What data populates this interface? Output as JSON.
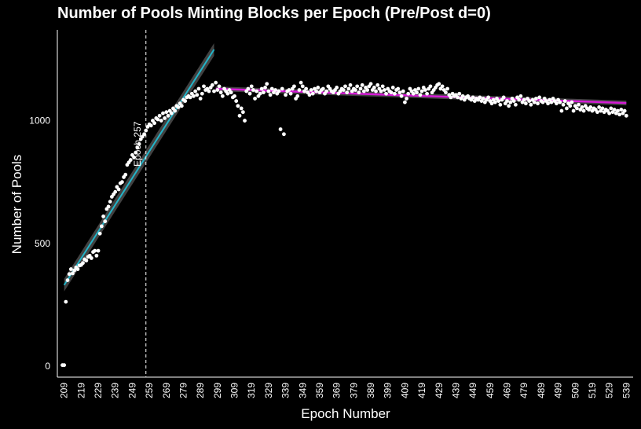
{
  "chart_data": {
    "type": "scatter",
    "title": "Number of Pools Minting Blocks per Epoch (Pre/Post d=0)",
    "xlabel": "Epoch Number",
    "ylabel": "Number of Pools",
    "xlim": [
      205,
      543
    ],
    "ylim": [
      -45,
      1370
    ],
    "x_ticks": [
      209,
      219,
      229,
      239,
      249,
      259,
      269,
      279,
      289,
      299,
      309,
      319,
      329,
      339,
      349,
      359,
      369,
      379,
      389,
      399,
      409,
      419,
      429,
      439,
      449,
      459,
      469,
      479,
      489,
      499,
      509,
      519,
      529,
      539
    ],
    "y_ticks": [
      0,
      500,
      1000
    ],
    "grid": false,
    "legend": "none",
    "colors": {
      "background": "#000000",
      "points": "#ffffff",
      "pre_fit": "#22b5c9",
      "post_fit": "#d61ad6",
      "band": "#4d4d4d",
      "vline": "#ffffff"
    },
    "reference_line": {
      "x": 257,
      "label": "Epoch 257",
      "style": "dashed"
    },
    "fit_lines": [
      {
        "segment": "pre",
        "x": [
          209,
          297
        ],
        "y": [
          330,
          1290
        ]
      },
      {
        "segment": "post",
        "x": [
          298,
          539
        ],
        "y": [
          1130,
          1072
        ]
      }
    ],
    "points": [
      [
        208,
        4
      ],
      [
        209,
        4
      ],
      [
        210,
        262
      ],
      [
        211,
        350
      ],
      [
        212,
        375
      ],
      [
        213,
        395
      ],
      [
        214,
        378
      ],
      [
        215,
        390
      ],
      [
        216,
        402
      ],
      [
        217,
        395
      ],
      [
        218,
        410
      ],
      [
        219,
        412
      ],
      [
        220,
        420
      ],
      [
        221,
        435
      ],
      [
        222,
        430
      ],
      [
        223,
        445
      ],
      [
        224,
        450
      ],
      [
        225,
        440
      ],
      [
        226,
        465
      ],
      [
        227,
        470
      ],
      [
        228,
        450
      ],
      [
        229,
        470
      ],
      [
        230,
        540
      ],
      [
        231,
        570
      ],
      [
        232,
        610
      ],
      [
        233,
        590
      ],
      [
        234,
        640
      ],
      [
        235,
        650
      ],
      [
        236,
        670
      ],
      [
        237,
        690
      ],
      [
        238,
        700
      ],
      [
        239,
        710
      ],
      [
        240,
        730
      ],
      [
        241,
        720
      ],
      [
        242,
        745
      ],
      [
        243,
        750
      ],
      [
        244,
        770
      ],
      [
        245,
        780
      ],
      [
        246,
        820
      ],
      [
        247,
        830
      ],
      [
        248,
        840
      ],
      [
        249,
        860
      ],
      [
        250,
        850
      ],
      [
        251,
        870
      ],
      [
        252,
        890
      ],
      [
        253,
        905
      ],
      [
        254,
        925
      ],
      [
        255,
        935
      ],
      [
        256,
        945
      ],
      [
        257,
        960
      ],
      [
        258,
        975
      ],
      [
        259,
        985
      ],
      [
        260,
        980
      ],
      [
        261,
        1000
      ],
      [
        262,
        990
      ],
      [
        263,
        1010
      ],
      [
        264,
        1005
      ],
      [
        265,
        1020
      ],
      [
        266,
        1000
      ],
      [
        267,
        1030
      ],
      [
        268,
        1010
      ],
      [
        269,
        1035
      ],
      [
        270,
        1020
      ],
      [
        271,
        1040
      ],
      [
        272,
        1030
      ],
      [
        273,
        1050
      ],
      [
        274,
        1040
      ],
      [
        275,
        1060
      ],
      [
        276,
        1055
      ],
      [
        277,
        1070
      ],
      [
        278,
        1060
      ],
      [
        279,
        1085
      ],
      [
        280,
        1080
      ],
      [
        281,
        1095
      ],
      [
        282,
        1100
      ],
      [
        283,
        1095
      ],
      [
        284,
        1110
      ],
      [
        285,
        1100
      ],
      [
        286,
        1120
      ],
      [
        287,
        1105
      ],
      [
        288,
        1130
      ],
      [
        289,
        1090
      ],
      [
        290,
        1110
      ],
      [
        291,
        1140
      ],
      [
        292,
        1125
      ],
      [
        293,
        1130
      ],
      [
        294,
        1120
      ],
      [
        295,
        1135
      ],
      [
        296,
        1145
      ],
      [
        297,
        1120
      ],
      [
        298,
        1155
      ],
      [
        299,
        1125
      ],
      [
        300,
        1140
      ],
      [
        301,
        1115
      ],
      [
        302,
        1100
      ],
      [
        303,
        1130
      ],
      [
        304,
        1120
      ],
      [
        305,
        1110
      ],
      [
        306,
        1125
      ],
      [
        307,
        1115
      ],
      [
        308,
        1095
      ],
      [
        309,
        1100
      ],
      [
        310,
        1080
      ],
      [
        311,
        1060
      ],
      [
        312,
        1020
      ],
      [
        313,
        1050
      ],
      [
        314,
        1035
      ],
      [
        315,
        1000
      ],
      [
        316,
        1120
      ],
      [
        317,
        1130
      ],
      [
        318,
        1110
      ],
      [
        319,
        1140
      ],
      [
        320,
        1125
      ],
      [
        321,
        1090
      ],
      [
        322,
        1120
      ],
      [
        323,
        1100
      ],
      [
        324,
        1110
      ],
      [
        325,
        1130
      ],
      [
        326,
        1115
      ],
      [
        327,
        1135
      ],
      [
        328,
        1150
      ],
      [
        329,
        1120
      ],
      [
        330,
        1105
      ],
      [
        331,
        1130
      ],
      [
        332,
        1115
      ],
      [
        333,
        1125
      ],
      [
        334,
        1110
      ],
      [
        335,
        1120
      ],
      [
        336,
        965
      ],
      [
        337,
        1130
      ],
      [
        338,
        945
      ],
      [
        339,
        1105
      ],
      [
        340,
        1120
      ],
      [
        341,
        1125
      ],
      [
        342,
        1110
      ],
      [
        343,
        1130
      ],
      [
        344,
        1140
      ],
      [
        345,
        1090
      ],
      [
        346,
        1100
      ],
      [
        347,
        1125
      ],
      [
        348,
        1155
      ],
      [
        349,
        1140
      ],
      [
        350,
        1120
      ],
      [
        351,
        1130
      ],
      [
        352,
        1115
      ],
      [
        353,
        1105
      ],
      [
        354,
        1125
      ],
      [
        355,
        1110
      ],
      [
        356,
        1130
      ],
      [
        357,
        1120
      ],
      [
        358,
        1135
      ],
      [
        359,
        1115
      ],
      [
        360,
        1125
      ],
      [
        361,
        1130
      ],
      [
        362,
        1110
      ],
      [
        363,
        1120
      ],
      [
        364,
        1140
      ],
      [
        365,
        1130
      ],
      [
        366,
        1120
      ],
      [
        367,
        1115
      ],
      [
        368,
        1125
      ],
      [
        369,
        1135
      ],
      [
        370,
        1110
      ],
      [
        371,
        1120
      ],
      [
        372,
        1130
      ],
      [
        373,
        1125
      ],
      [
        374,
        1140
      ],
      [
        375,
        1115
      ],
      [
        376,
        1130
      ],
      [
        377,
        1145
      ],
      [
        378,
        1120
      ],
      [
        379,
        1130
      ],
      [
        380,
        1125
      ],
      [
        381,
        1140
      ],
      [
        382,
        1115
      ],
      [
        383,
        1130
      ],
      [
        384,
        1145
      ],
      [
        385,
        1120
      ],
      [
        386,
        1135
      ],
      [
        387,
        1125
      ],
      [
        388,
        1140
      ],
      [
        389,
        1150
      ],
      [
        390,
        1125
      ],
      [
        391,
        1135
      ],
      [
        392,
        1120
      ],
      [
        393,
        1145
      ],
      [
        394,
        1130
      ],
      [
        395,
        1120
      ],
      [
        396,
        1140
      ],
      [
        397,
        1125
      ],
      [
        398,
        1110
      ],
      [
        399,
        1130
      ],
      [
        400,
        1120
      ],
      [
        401,
        1115
      ],
      [
        402,
        1135
      ],
      [
        403,
        1110
      ],
      [
        404,
        1125
      ],
      [
        405,
        1130
      ],
      [
        406,
        1115
      ],
      [
        407,
        1100
      ],
      [
        408,
        1120
      ],
      [
        409,
        1075
      ],
      [
        410,
        1090
      ],
      [
        411,
        1110
      ],
      [
        412,
        1130
      ],
      [
        413,
        1120
      ],
      [
        414,
        1110
      ],
      [
        415,
        1125
      ],
      [
        416,
        1115
      ],
      [
        417,
        1130
      ],
      [
        418,
        1105
      ],
      [
        419,
        1120
      ],
      [
        420,
        1135
      ],
      [
        421,
        1125
      ],
      [
        422,
        1110
      ],
      [
        423,
        1130
      ],
      [
        424,
        1140
      ],
      [
        425,
        1115
      ],
      [
        426,
        1125
      ],
      [
        427,
        1135
      ],
      [
        428,
        1145
      ],
      [
        429,
        1150
      ],
      [
        430,
        1130
      ],
      [
        431,
        1140
      ],
      [
        432,
        1125
      ],
      [
        433,
        1115
      ],
      [
        434,
        1130
      ],
      [
        435,
        1105
      ],
      [
        436,
        1095
      ],
      [
        437,
        1110
      ],
      [
        438,
        1100
      ],
      [
        439,
        1105
      ],
      [
        440,
        1095
      ],
      [
        441,
        1110
      ],
      [
        442,
        1090
      ],
      [
        443,
        1100
      ],
      [
        444,
        1085
      ],
      [
        445,
        1095
      ],
      [
        446,
        1100
      ],
      [
        447,
        1090
      ],
      [
        448,
        1085
      ],
      [
        449,
        1095
      ],
      [
        450,
        1080
      ],
      [
        451,
        1090
      ],
      [
        452,
        1085
      ],
      [
        453,
        1095
      ],
      [
        454,
        1080
      ],
      [
        455,
        1090
      ],
      [
        456,
        1075
      ],
      [
        457,
        1085
      ],
      [
        458,
        1095
      ],
      [
        459,
        1080
      ],
      [
        460,
        1070
      ],
      [
        461,
        1085
      ],
      [
        462,
        1075
      ],
      [
        463,
        1090
      ],
      [
        464,
        1080
      ],
      [
        465,
        1065
      ],
      [
        466,
        1085
      ],
      [
        467,
        1095
      ],
      [
        468,
        1070
      ],
      [
        469,
        1080
      ],
      [
        470,
        1060
      ],
      [
        471,
        1075
      ],
      [
        472,
        1090
      ],
      [
        473,
        1080
      ],
      [
        474,
        1065
      ],
      [
        475,
        1095
      ],
      [
        476,
        1085
      ],
      [
        477,
        1100
      ],
      [
        478,
        1075
      ],
      [
        479,
        1085
      ],
      [
        480,
        1070
      ],
      [
        481,
        1090
      ],
      [
        482,
        1080
      ],
      [
        483,
        1065
      ],
      [
        484,
        1085
      ],
      [
        485,
        1075
      ],
      [
        486,
        1090
      ],
      [
        487,
        1070
      ],
      [
        488,
        1095
      ],
      [
        489,
        1080
      ],
      [
        490,
        1075
      ],
      [
        491,
        1090
      ],
      [
        492,
        1080
      ],
      [
        493,
        1070
      ],
      [
        494,
        1085
      ],
      [
        495,
        1075
      ],
      [
        496,
        1090
      ],
      [
        497,
        1080
      ],
      [
        498,
        1070
      ],
      [
        499,
        1085
      ],
      [
        500,
        1075
      ],
      [
        501,
        1040
      ],
      [
        502,
        1065
      ],
      [
        503,
        1080
      ],
      [
        504,
        1050
      ],
      [
        505,
        1070
      ],
      [
        506,
        1060
      ],
      [
        507,
        1075
      ],
      [
        508,
        1040
      ],
      [
        509,
        1060
      ],
      [
        510,
        1050
      ],
      [
        511,
        1065
      ],
      [
        512,
        1045
      ],
      [
        513,
        1055
      ],
      [
        514,
        1040
      ],
      [
        515,
        1060
      ],
      [
        516,
        1050
      ],
      [
        517,
        1045
      ],
      [
        518,
        1055
      ],
      [
        519,
        1040
      ],
      [
        520,
        1050
      ],
      [
        521,
        1045
      ],
      [
        522,
        1035
      ],
      [
        523,
        1055
      ],
      [
        524,
        1040
      ],
      [
        525,
        1050
      ],
      [
        526,
        1035
      ],
      [
        527,
        1045
      ],
      [
        528,
        1040
      ],
      [
        529,
        1030
      ],
      [
        530,
        1050
      ],
      [
        531,
        1035
      ],
      [
        532,
        1045
      ],
      [
        533,
        1030
      ],
      [
        534,
        1040
      ],
      [
        535,
        1025
      ],
      [
        536,
        1045
      ],
      [
        537,
        1030
      ],
      [
        538,
        1040
      ],
      [
        539,
        1020
      ]
    ]
  }
}
